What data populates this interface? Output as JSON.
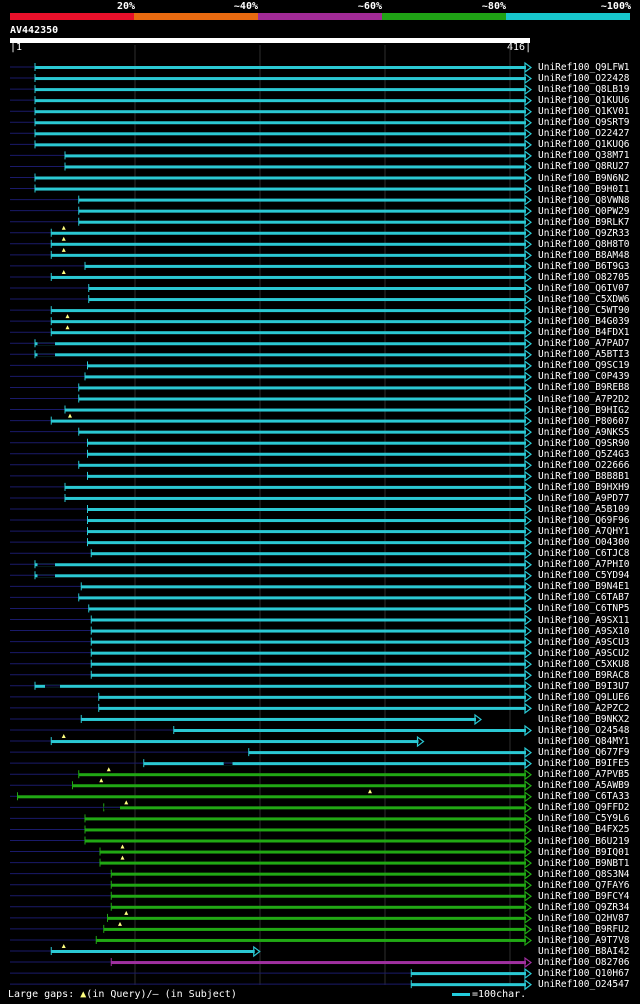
{
  "legend": {
    "labels": [
      "20%",
      "~40%",
      "~60%",
      "~80%",
      "~100%"
    ],
    "colors": [
      "#e8102a",
      "#e86a10",
      "#a12a96",
      "#1fa215",
      "#17c6cc"
    ]
  },
  "query": {
    "id": "AV442350",
    "start": "1",
    "end": "416",
    "length": 416
  },
  "footer": {
    "large_gaps": "Large gaps:",
    "in_query": "(in Query)/",
    "in_subject": "(in Subject)",
    "scale_label": "=100char."
  },
  "hits": [
    {
      "name": "UniRef100_Q9LFW1",
      "color": "cyan",
      "start": 20,
      "end": 416,
      "ext": "arrow"
    },
    {
      "name": "UniRef100_O22428",
      "color": "cyan",
      "start": 20,
      "end": 416,
      "ext": "arrow"
    },
    {
      "name": "UniRef100_Q8LB19",
      "color": "cyan",
      "start": 20,
      "end": 416,
      "ext": "arrow"
    },
    {
      "name": "UniRef100_Q1KUU6",
      "color": "cyan",
      "start": 20,
      "end": 416,
      "ext": "arrow"
    },
    {
      "name": "UniRef100_Q1KV01",
      "color": "cyan",
      "start": 20,
      "end": 416,
      "ext": "arrow"
    },
    {
      "name": "UniRef100_Q9SRT9",
      "color": "cyan",
      "start": 20,
      "end": 416,
      "ext": "arrow"
    },
    {
      "name": "UniRef100_O22427",
      "color": "cyan",
      "start": 20,
      "end": 416,
      "ext": "arrow"
    },
    {
      "name": "UniRef100_Q1KUQ6",
      "color": "cyan",
      "start": 20,
      "end": 416,
      "ext": "arrow"
    },
    {
      "name": "UniRef100_Q38M71",
      "color": "cyan",
      "start": 44,
      "end": 416,
      "ext": "arrow"
    },
    {
      "name": "UniRef100_Q8RU27",
      "color": "cyan",
      "start": 44,
      "end": 416,
      "ext": "arrow"
    },
    {
      "name": "UniRef100_B9N6N2",
      "color": "cyan",
      "start": 20,
      "end": 416,
      "ext": "arrow"
    },
    {
      "name": "UniRef100_B9H0I1",
      "color": "cyan",
      "start": 20,
      "end": 416,
      "ext": "arrow"
    },
    {
      "name": "UniRef100_Q8VWN8",
      "color": "cyan",
      "start": 55,
      "end": 416,
      "ext": "arrow"
    },
    {
      "name": "UniRef100_Q0PW29",
      "color": "cyan",
      "start": 55,
      "end": 416,
      "ext": "arrow"
    },
    {
      "name": "UniRef100_B9RLK7",
      "color": "cyan",
      "start": 55,
      "end": 416,
      "ext": "arrow"
    },
    {
      "name": "UniRef100_Q9ZR33",
      "color": "cyan",
      "start": 33,
      "end": 416,
      "ext": "arrow",
      "gap": 43
    },
    {
      "name": "UniRef100_Q8H8T0",
      "color": "cyan",
      "start": 33,
      "end": 416,
      "ext": "arrow",
      "gap": 43
    },
    {
      "name": "UniRef100_B8AM48",
      "color": "cyan",
      "start": 33,
      "end": 416,
      "ext": "arrow",
      "gap": 43
    },
    {
      "name": "UniRef100_B6T9G3",
      "color": "cyan",
      "start": 60,
      "end": 416,
      "ext": "arrow"
    },
    {
      "name": "UniRef100_O82705",
      "color": "cyan",
      "start": 33,
      "end": 416,
      "ext": "arrow",
      "gap": 43
    },
    {
      "name": "UniRef100_Q6IV07",
      "color": "cyan",
      "start": 63,
      "end": 416,
      "ext": "arrow"
    },
    {
      "name": "UniRef100_C5XDW6",
      "color": "cyan",
      "start": 63,
      "end": 416,
      "ext": "arrow"
    },
    {
      "name": "UniRef100_C5WT90",
      "color": "cyan",
      "start": 33,
      "end": 416,
      "ext": "arrow"
    },
    {
      "name": "UniRef100_B4G039",
      "color": "cyan",
      "start": 33,
      "end": 416,
      "ext": "arrow",
      "gap": 46
    },
    {
      "name": "UniRef100_B4FDX1",
      "color": "cyan",
      "start": 33,
      "end": 416,
      "ext": "arrow",
      "gap": 46
    },
    {
      "name": "UniRef100_A7PAD7",
      "color": "cyan",
      "start": 20,
      "end": 416,
      "ext": "arrow",
      "subgap": [
        22,
        36
      ]
    },
    {
      "name": "UniRef100_A5BTI3",
      "color": "cyan",
      "start": 20,
      "end": 416,
      "ext": "arrow",
      "subgap": [
        22,
        36
      ]
    },
    {
      "name": "UniRef100_Q9SC19",
      "color": "cyan",
      "start": 62,
      "end": 416,
      "ext": "arrow"
    },
    {
      "name": "UniRef100_C0P439",
      "color": "cyan",
      "start": 60,
      "end": 416,
      "ext": "arrow"
    },
    {
      "name": "UniRef100_B9REB8",
      "color": "cyan",
      "start": 55,
      "end": 416,
      "ext": "arrow"
    },
    {
      "name": "UniRef100_A7P2D2",
      "color": "cyan",
      "start": 55,
      "end": 416,
      "ext": "arrow"
    },
    {
      "name": "UniRef100_B9HIG2",
      "color": "cyan",
      "start": 44,
      "end": 416,
      "ext": "arrow"
    },
    {
      "name": "UniRef100_P80607",
      "color": "cyan",
      "start": 33,
      "end": 416,
      "ext": "arrow",
      "gap": 48
    },
    {
      "name": "UniRef100_A9NKS5",
      "color": "cyan",
      "start": 55,
      "end": 416,
      "ext": "arrow"
    },
    {
      "name": "UniRef100_Q9SR90",
      "color": "cyan",
      "start": 62,
      "end": 416,
      "ext": "arrow"
    },
    {
      "name": "UniRef100_Q5Z4G3",
      "color": "cyan",
      "start": 62,
      "end": 416,
      "ext": "arrow"
    },
    {
      "name": "UniRef100_O22666",
      "color": "cyan",
      "start": 55,
      "end": 416,
      "ext": "arrow"
    },
    {
      "name": "UniRef100_B8B8B1",
      "color": "cyan",
      "start": 62,
      "end": 416,
      "ext": "arrow"
    },
    {
      "name": "UniRef100_B9HXH9",
      "color": "cyan",
      "start": 44,
      "end": 416,
      "ext": "arrow"
    },
    {
      "name": "UniRef100_A9PD77",
      "color": "cyan",
      "start": 44,
      "end": 416,
      "ext": "arrow"
    },
    {
      "name": "UniRef100_A5B109",
      "color": "cyan",
      "start": 62,
      "end": 416,
      "ext": "arrow"
    },
    {
      "name": "UniRef100_Q69F96",
      "color": "cyan",
      "start": 62,
      "end": 416,
      "ext": "arrow"
    },
    {
      "name": "UniRef100_A7QHY1",
      "color": "cyan",
      "start": 62,
      "end": 416,
      "ext": "arrow"
    },
    {
      "name": "UniRef100_O04300",
      "color": "cyan",
      "start": 62,
      "end": 416,
      "ext": "arrow"
    },
    {
      "name": "UniRef100_C6TJC8",
      "color": "cyan",
      "start": 65,
      "end": 416,
      "ext": "arrow"
    },
    {
      "name": "UniRef100_A7PHI0",
      "color": "cyan",
      "start": 20,
      "end": 416,
      "ext": "arrow",
      "subgap": [
        22,
        36
      ]
    },
    {
      "name": "UniRef100_C5YD94",
      "color": "cyan",
      "start": 20,
      "end": 416,
      "ext": "arrow",
      "subgap": [
        22,
        36
      ]
    },
    {
      "name": "UniRef100_B9N4E1",
      "color": "cyan",
      "start": 57,
      "end": 416,
      "ext": "arrow"
    },
    {
      "name": "UniRef100_C6TAB7",
      "color": "cyan",
      "start": 55,
      "end": 416,
      "ext": "arrow"
    },
    {
      "name": "UniRef100_C6TNP5",
      "color": "cyan",
      "start": 63,
      "end": 416,
      "ext": "arrow"
    },
    {
      "name": "UniRef100_A9SX11",
      "color": "cyan",
      "start": 65,
      "end": 416,
      "ext": "arrow"
    },
    {
      "name": "UniRef100_A9SX10",
      "color": "cyan",
      "start": 65,
      "end": 416,
      "ext": "arrow"
    },
    {
      "name": "UniRef100_A9SCU3",
      "color": "cyan",
      "start": 65,
      "end": 416,
      "ext": "arrow"
    },
    {
      "name": "UniRef100_A9SCU2",
      "color": "cyan",
      "start": 65,
      "end": 416,
      "ext": "arrow"
    },
    {
      "name": "UniRef100_C5XKU8",
      "color": "cyan",
      "start": 65,
      "end": 416,
      "ext": "arrow"
    },
    {
      "name": "UniRef100_B9RAC8",
      "color": "cyan",
      "start": 65,
      "end": 416,
      "ext": "arrow"
    },
    {
      "name": "UniRef100_B9I3U7",
      "color": "cyan",
      "start": 20,
      "end": 416,
      "ext": "arrow",
      "subgap": [
        28,
        40
      ]
    },
    {
      "name": "UniRef100_Q9LUE6",
      "color": "cyan",
      "start": 71,
      "end": 416,
      "ext": "arrow"
    },
    {
      "name": "UniRef100_A2PZC2",
      "color": "cyan",
      "start": 71,
      "end": 416,
      "ext": "arrow"
    },
    {
      "name": "UniRef100_B9NKX2",
      "color": "cyan",
      "start": 57,
      "end": 376,
      "ext": "arrow"
    },
    {
      "name": "UniRef100_O24548",
      "color": "cyan",
      "start": 131,
      "end": 416,
      "ext": "arrow"
    },
    {
      "name": "UniRef100_Q84MY1",
      "color": "cyan",
      "start": 33,
      "end": 330,
      "ext": "arrow",
      "gap": 43
    },
    {
      "name": "UniRef100_Q677F9",
      "color": "cyan",
      "start": 191,
      "end": 416,
      "ext": "arrow"
    },
    {
      "name": "UniRef100_B9IFE5",
      "color": "cyan",
      "start": 107,
      "end": 416,
      "ext": "arrow",
      "subgap": [
        171,
        178
      ]
    },
    {
      "name": "UniRef100_A7PVB5",
      "color": "green",
      "start": 55,
      "end": 416,
      "ext": "arrow",
      "gap": 79
    },
    {
      "name": "UniRef100_A5AWB9",
      "color": "green",
      "start": 50,
      "end": 416,
      "ext": "arrow",
      "gap": 73
    },
    {
      "name": "UniRef100_C6TA33",
      "color": "green",
      "start": 6,
      "end": 416,
      "ext": "arrow",
      "gap": 288
    },
    {
      "name": "UniRef100_Q9FFD2",
      "color": "green",
      "start": 75,
      "end": 416,
      "ext": "arrow",
      "subgap": [
        75,
        88
      ],
      "gap": 93
    },
    {
      "name": "UniRef100_C5Y9L6",
      "color": "green",
      "start": 60,
      "end": 416,
      "ext": "arrow"
    },
    {
      "name": "UniRef100_B4FX25",
      "color": "green",
      "start": 60,
      "end": 416,
      "ext": "arrow"
    },
    {
      "name": "UniRef100_B6U219",
      "color": "green",
      "start": 60,
      "end": 416,
      "ext": "arrow"
    },
    {
      "name": "UniRef100_B9IQ01",
      "color": "green",
      "start": 72,
      "end": 416,
      "ext": "arrow",
      "gap": 90
    },
    {
      "name": "UniRef100_B9NBT1",
      "color": "green",
      "start": 72,
      "end": 416,
      "ext": "arrow",
      "gap": 90
    },
    {
      "name": "UniRef100_Q8S3N4",
      "color": "green",
      "start": 81,
      "end": 416,
      "ext": "arrow"
    },
    {
      "name": "UniRef100_Q7FAY6",
      "color": "green",
      "start": 81,
      "end": 416,
      "ext": "arrow"
    },
    {
      "name": "UniRef100_B9FCY4",
      "color": "green",
      "start": 81,
      "end": 416,
      "ext": "arrow"
    },
    {
      "name": "UniRef100_Q9ZR34",
      "color": "green",
      "start": 81,
      "end": 416,
      "ext": "arrow"
    },
    {
      "name": "UniRef100_Q2HV87",
      "color": "green",
      "start": 78,
      "end": 416,
      "ext": "arrow",
      "gap": 93
    },
    {
      "name": "UniRef100_B9RFU2",
      "color": "green",
      "start": 75,
      "end": 416,
      "ext": "arrow",
      "gap": 88
    },
    {
      "name": "UniRef100_A9T7V8",
      "color": "green",
      "start": 69,
      "end": 416,
      "ext": "arrow"
    },
    {
      "name": "UniRef100_B8AI42",
      "color": "cyan",
      "start": 33,
      "end": 199,
      "ext": "arrow",
      "gap": 43
    },
    {
      "name": "UniRef100_O82706",
      "color": "purple",
      "start": 81,
      "end": 416,
      "ext": "arrow"
    },
    {
      "name": "UniRef100_Q10H67",
      "color": "cyan",
      "start": 321,
      "end": 416,
      "ext": "arrow"
    },
    {
      "name": "UniRef100_O24547",
      "color": "cyan",
      "start": 321,
      "end": 416,
      "ext": "arrow"
    }
  ],
  "colors": {
    "cyan": "#2bc9d4",
    "green": "#21a814",
    "purple": "#a030a0",
    "gap_line": "#1a1a6a",
    "grid": "#2e2e2e",
    "marker": "#ffff80"
  }
}
